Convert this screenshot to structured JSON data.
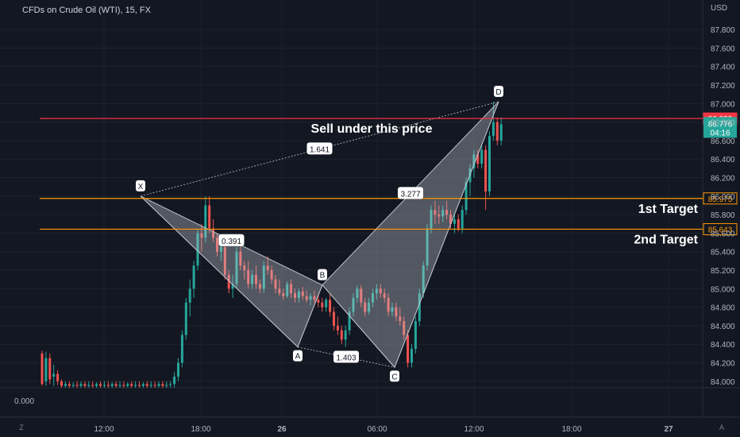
{
  "header": {
    "title": "CFDs on Crude Oil (WTI), 15, FX",
    "currency": "USD"
  },
  "indicator": {
    "value": "0.000"
  },
  "buttons": {
    "log": "Z",
    "auto": "A"
  },
  "colors": {
    "background": "#131722",
    "grid": "#1e222d",
    "up": "#26a69a",
    "down": "#ef5350",
    "red_line": "#f23645",
    "orange_line": "#ff9800",
    "pattern": "#9aa0ab"
  },
  "chart_data": {
    "type": "candlestick",
    "ylim": [
      83.93,
      87.93
    ],
    "y_ticks": [
      "84.000",
      "84.200",
      "84.400",
      "84.600",
      "84.800",
      "85.000",
      "85.200",
      "85.400",
      "85.600",
      "85.800",
      "86.000",
      "86.200",
      "86.400",
      "86.600",
      "86.800",
      "87.000",
      "87.200",
      "87.400",
      "87.600",
      "87.800"
    ],
    "x_ticks": [
      "12:00",
      "18:00",
      "26",
      "06:00",
      "12:00",
      "18:00",
      "27"
    ],
    "price_levels": [
      {
        "id": "sell",
        "value": 86.839,
        "label": "86.839",
        "color": "#f23645",
        "annotation": "Sell under this price"
      },
      {
        "id": "target1",
        "value": 85.975,
        "label": "85.975",
        "color": "#ff9800",
        "annotation": "1st Target"
      },
      {
        "id": "target2",
        "value": 85.643,
        "label": "85.643",
        "color": "#ff9800",
        "annotation": "2nd Target"
      }
    ],
    "last_price": {
      "value": 86.776,
      "label": "86.776",
      "countdown": "04:16",
      "color": "#26a69a"
    },
    "harmonic_points": [
      {
        "name": "X",
        "price": 86.0,
        "label": "X"
      },
      {
        "name": "A",
        "price": 84.37,
        "label": "A"
      },
      {
        "name": "B",
        "price": 85.04,
        "label": "B"
      },
      {
        "name": "C",
        "price": 84.15,
        "label": "C"
      },
      {
        "name": "D",
        "price": 87.02,
        "label": "D"
      }
    ],
    "ratios": [
      {
        "between": "X-B",
        "value": "0.391"
      },
      {
        "between": "X-D",
        "value": "1.641"
      },
      {
        "between": "A-C",
        "value": "1.403"
      },
      {
        "between": "B-D",
        "value": "3.277"
      }
    ],
    "candles": [
      {
        "o": 84.3,
        "h": 84.33,
        "l": 83.95,
        "c": 83.97
      },
      {
        "o": 84.0,
        "h": 84.32,
        "l": 83.95,
        "c": 84.25
      },
      {
        "o": 84.25,
        "h": 84.3,
        "l": 83.97,
        "c": 84.02
      },
      {
        "o": 84.05,
        "h": 84.18,
        "l": 83.95,
        "c": 84.08
      },
      {
        "o": 84.08,
        "h": 84.12,
        "l": 83.96,
        "c": 84.0
      },
      {
        "o": 84.0,
        "h": 84.02,
        "l": 83.93,
        "c": 83.95
      },
      {
        "o": 83.95,
        "h": 84.0,
        "l": 83.93,
        "c": 83.97
      },
      {
        "o": 83.97,
        "h": 84.0,
        "l": 83.93,
        "c": 83.95
      },
      {
        "o": 83.95,
        "h": 83.99,
        "l": 83.93,
        "c": 83.96
      },
      {
        "o": 83.96,
        "h": 84.0,
        "l": 83.93,
        "c": 83.95
      },
      {
        "o": 83.95,
        "h": 84.0,
        "l": 83.93,
        "c": 83.97
      },
      {
        "o": 83.97,
        "h": 84.0,
        "l": 83.93,
        "c": 83.95
      },
      {
        "o": 83.95,
        "h": 84.0,
        "l": 83.93,
        "c": 83.96
      },
      {
        "o": 83.96,
        "h": 84.0,
        "l": 83.93,
        "c": 83.95
      },
      {
        "o": 83.95,
        "h": 83.99,
        "l": 83.93,
        "c": 83.97
      },
      {
        "o": 83.97,
        "h": 84.0,
        "l": 83.93,
        "c": 83.95
      },
      {
        "o": 83.95,
        "h": 84.0,
        "l": 83.93,
        "c": 83.96
      },
      {
        "o": 83.96,
        "h": 84.0,
        "l": 83.93,
        "c": 83.95
      },
      {
        "o": 83.95,
        "h": 83.99,
        "l": 83.93,
        "c": 83.97
      },
      {
        "o": 83.97,
        "h": 84.0,
        "l": 83.93,
        "c": 83.95
      },
      {
        "o": 83.95,
        "h": 84.0,
        "l": 83.93,
        "c": 83.96
      },
      {
        "o": 83.96,
        "h": 84.0,
        "l": 83.93,
        "c": 83.95
      },
      {
        "o": 83.95,
        "h": 83.99,
        "l": 83.93,
        "c": 83.97
      },
      {
        "o": 83.97,
        "h": 84.0,
        "l": 83.93,
        "c": 83.95
      },
      {
        "o": 83.95,
        "h": 84.0,
        "l": 83.93,
        "c": 83.96
      },
      {
        "o": 83.96,
        "h": 84.0,
        "l": 83.93,
        "c": 83.95
      },
      {
        "o": 83.95,
        "h": 83.99,
        "l": 83.93,
        "c": 83.97
      },
      {
        "o": 83.97,
        "h": 84.0,
        "l": 83.93,
        "c": 83.95
      },
      {
        "o": 83.95,
        "h": 84.0,
        "l": 83.93,
        "c": 83.96
      },
      {
        "o": 83.96,
        "h": 84.0,
        "l": 83.93,
        "c": 83.95
      },
      {
        "o": 83.95,
        "h": 84.0,
        "l": 83.93,
        "c": 83.97
      },
      {
        "o": 83.97,
        "h": 84.0,
        "l": 83.93,
        "c": 83.95
      },
      {
        "o": 83.95,
        "h": 84.0,
        "l": 83.93,
        "c": 83.96
      },
      {
        "o": 83.96,
        "h": 84.0,
        "l": 83.93,
        "c": 83.97
      },
      {
        "o": 83.97,
        "h": 84.1,
        "l": 83.93,
        "c": 84.05
      },
      {
        "o": 84.05,
        "h": 84.25,
        "l": 84.0,
        "c": 84.2
      },
      {
        "o": 84.2,
        "h": 84.55,
        "l": 84.15,
        "c": 84.5
      },
      {
        "o": 84.5,
        "h": 84.9,
        "l": 84.45,
        "c": 84.85
      },
      {
        "o": 84.85,
        "h": 85.1,
        "l": 84.7,
        "c": 85.0
      },
      {
        "o": 85.0,
        "h": 85.3,
        "l": 84.9,
        "c": 85.25
      },
      {
        "o": 85.25,
        "h": 85.65,
        "l": 85.2,
        "c": 85.6
      },
      {
        "o": 85.6,
        "h": 85.7,
        "l": 85.4,
        "c": 85.55
      },
      {
        "o": 85.55,
        "h": 86.0,
        "l": 85.5,
        "c": 85.9
      },
      {
        "o": 85.9,
        "h": 86.0,
        "l": 85.6,
        "c": 85.65
      },
      {
        "o": 85.65,
        "h": 85.75,
        "l": 85.5,
        "c": 85.55
      },
      {
        "o": 85.55,
        "h": 85.6,
        "l": 85.35,
        "c": 85.4
      },
      {
        "o": 85.4,
        "h": 85.5,
        "l": 85.3,
        "c": 85.45
      },
      {
        "o": 85.45,
        "h": 85.5,
        "l": 85.1,
        "c": 85.15
      },
      {
        "o": 85.15,
        "h": 85.2,
        "l": 84.95,
        "c": 85.0
      },
      {
        "o": 85.0,
        "h": 85.15,
        "l": 84.9,
        "c": 85.05
      },
      {
        "o": 85.05,
        "h": 85.45,
        "l": 85.0,
        "c": 85.4
      },
      {
        "o": 85.4,
        "h": 85.5,
        "l": 85.2,
        "c": 85.25
      },
      {
        "o": 85.25,
        "h": 85.3,
        "l": 85.1,
        "c": 85.2
      },
      {
        "o": 85.2,
        "h": 85.3,
        "l": 85.0,
        "c": 85.05
      },
      {
        "o": 85.05,
        "h": 85.2,
        "l": 85.0,
        "c": 85.15
      },
      {
        "o": 85.15,
        "h": 85.25,
        "l": 85.0,
        "c": 85.05
      },
      {
        "o": 85.05,
        "h": 85.1,
        "l": 84.95,
        "c": 85.0
      },
      {
        "o": 85.0,
        "h": 85.3,
        "l": 84.95,
        "c": 85.25
      },
      {
        "o": 85.25,
        "h": 85.35,
        "l": 85.15,
        "c": 85.2
      },
      {
        "o": 85.2,
        "h": 85.25,
        "l": 85.05,
        "c": 85.1
      },
      {
        "o": 85.1,
        "h": 85.15,
        "l": 84.95,
        "c": 85.0
      },
      {
        "o": 85.0,
        "h": 85.1,
        "l": 84.92,
        "c": 84.95
      },
      {
        "o": 84.95,
        "h": 85.0,
        "l": 84.88,
        "c": 84.92
      },
      {
        "o": 84.92,
        "h": 85.08,
        "l": 84.9,
        "c": 85.05
      },
      {
        "o": 85.05,
        "h": 85.1,
        "l": 84.9,
        "c": 84.95
      },
      {
        "o": 84.95,
        "h": 85.0,
        "l": 84.85,
        "c": 84.9
      },
      {
        "o": 84.9,
        "h": 85.0,
        "l": 84.85,
        "c": 84.97
      },
      {
        "o": 84.97,
        "h": 85.02,
        "l": 84.88,
        "c": 84.92
      },
      {
        "o": 84.92,
        "h": 84.98,
        "l": 84.85,
        "c": 84.88
      },
      {
        "o": 84.88,
        "h": 84.95,
        "l": 84.82,
        "c": 84.92
      },
      {
        "o": 84.92,
        "h": 84.98,
        "l": 84.85,
        "c": 84.88
      },
      {
        "o": 84.88,
        "h": 84.95,
        "l": 84.8,
        "c": 84.85
      },
      {
        "o": 84.85,
        "h": 84.9,
        "l": 84.75,
        "c": 84.8
      },
      {
        "o": 84.8,
        "h": 84.9,
        "l": 84.75,
        "c": 84.88
      },
      {
        "o": 84.88,
        "h": 84.95,
        "l": 84.7,
        "c": 84.75
      },
      {
        "o": 84.75,
        "h": 84.8,
        "l": 84.55,
        "c": 84.6
      },
      {
        "o": 84.6,
        "h": 84.7,
        "l": 84.5,
        "c": 84.55
      },
      {
        "o": 84.55,
        "h": 84.6,
        "l": 84.4,
        "c": 84.45
      },
      {
        "o": 84.45,
        "h": 84.6,
        "l": 84.37,
        "c": 84.55
      },
      {
        "o": 84.55,
        "h": 84.8,
        "l": 84.5,
        "c": 84.75
      },
      {
        "o": 84.75,
        "h": 84.95,
        "l": 84.7,
        "c": 84.9
      },
      {
        "o": 84.9,
        "h": 85.04,
        "l": 84.85,
        "c": 85.0
      },
      {
        "o": 85.0,
        "h": 85.04,
        "l": 84.8,
        "c": 84.85
      },
      {
        "o": 84.85,
        "h": 84.9,
        "l": 84.7,
        "c": 84.75
      },
      {
        "o": 84.75,
        "h": 84.9,
        "l": 84.72,
        "c": 84.85
      },
      {
        "o": 84.85,
        "h": 85.0,
        "l": 84.8,
        "c": 84.95
      },
      {
        "o": 84.95,
        "h": 85.05,
        "l": 84.88,
        "c": 85.0
      },
      {
        "o": 85.0,
        "h": 85.05,
        "l": 84.9,
        "c": 84.95
      },
      {
        "o": 84.95,
        "h": 85.0,
        "l": 84.85,
        "c": 84.9
      },
      {
        "o": 84.9,
        "h": 84.95,
        "l": 84.7,
        "c": 84.75
      },
      {
        "o": 84.75,
        "h": 84.85,
        "l": 84.7,
        "c": 84.8
      },
      {
        "o": 84.8,
        "h": 84.85,
        "l": 84.65,
        "c": 84.7
      },
      {
        "o": 84.7,
        "h": 84.8,
        "l": 84.6,
        "c": 84.65
      },
      {
        "o": 84.65,
        "h": 84.7,
        "l": 84.45,
        "c": 84.5
      },
      {
        "o": 84.5,
        "h": 84.55,
        "l": 84.15,
        "c": 84.2
      },
      {
        "o": 84.2,
        "h": 84.4,
        "l": 84.15,
        "c": 84.35
      },
      {
        "o": 84.35,
        "h": 84.7,
        "l": 84.3,
        "c": 84.65
      },
      {
        "o": 84.65,
        "h": 85.0,
        "l": 84.6,
        "c": 84.95
      },
      {
        "o": 84.95,
        "h": 85.3,
        "l": 84.9,
        "c": 85.25
      },
      {
        "o": 85.25,
        "h": 85.7,
        "l": 85.2,
        "c": 85.65
      },
      {
        "o": 85.65,
        "h": 85.9,
        "l": 85.6,
        "c": 85.85
      },
      {
        "o": 85.85,
        "h": 85.95,
        "l": 85.7,
        "c": 85.8
      },
      {
        "o": 85.8,
        "h": 85.9,
        "l": 85.7,
        "c": 85.78
      },
      {
        "o": 85.78,
        "h": 85.9,
        "l": 85.72,
        "c": 85.85
      },
      {
        "o": 85.85,
        "h": 85.95,
        "l": 85.75,
        "c": 85.8
      },
      {
        "o": 85.8,
        "h": 85.85,
        "l": 85.65,
        "c": 85.7
      },
      {
        "o": 85.7,
        "h": 85.8,
        "l": 85.6,
        "c": 85.75
      },
      {
        "o": 85.75,
        "h": 85.8,
        "l": 85.62,
        "c": 85.65
      },
      {
        "o": 85.65,
        "h": 85.9,
        "l": 85.6,
        "c": 85.85
      },
      {
        "o": 85.85,
        "h": 86.2,
        "l": 85.8,
        "c": 86.15
      },
      {
        "o": 86.15,
        "h": 86.35,
        "l": 86.0,
        "c": 86.3
      },
      {
        "o": 86.3,
        "h": 86.5,
        "l": 86.2,
        "c": 86.45
      },
      {
        "o": 86.45,
        "h": 86.5,
        "l": 86.3,
        "c": 86.35
      },
      {
        "o": 86.35,
        "h": 86.55,
        "l": 86.3,
        "c": 86.5
      },
      {
        "o": 86.5,
        "h": 86.55,
        "l": 85.85,
        "c": 86.05
      },
      {
        "o": 86.05,
        "h": 86.7,
        "l": 86.0,
        "c": 86.65
      },
      {
        "o": 86.65,
        "h": 87.02,
        "l": 86.6,
        "c": 86.8
      },
      {
        "o": 86.8,
        "h": 86.85,
        "l": 86.55,
        "c": 86.6
      },
      {
        "o": 86.6,
        "h": 86.85,
        "l": 86.55,
        "c": 86.776
      }
    ]
  }
}
